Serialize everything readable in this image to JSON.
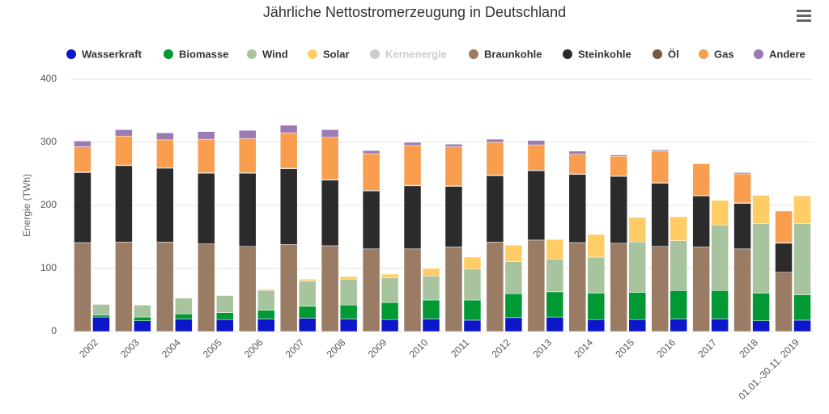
{
  "chart_data": {
    "type": "stacked-grouped-bar",
    "title": "Jährliche Nettostromerzeugung in Deutschland",
    "y_label": "Energie (TWh)",
    "categories": [
      "2002",
      "2003",
      "2004",
      "2005",
      "2006",
      "2007",
      "2008",
      "2009",
      "2010",
      "2011",
      "2012",
      "2013",
      "2014",
      "2015",
      "2016",
      "2017",
      "2018",
      "01.01.-30.11. 2019"
    ],
    "ylim": [
      0,
      400
    ],
    "yticks": [
      0,
      100,
      200,
      300,
      400
    ],
    "grid": true,
    "series": [
      {
        "name": "Wasserkraft",
        "color": "#0b17c9",
        "stack": 2,
        "visible": true,
        "values": [
          23,
          17,
          20,
          19,
          20,
          21,
          20,
          19,
          20,
          18,
          22,
          23,
          19,
          19,
          20,
          20,
          17,
          18
        ]
      },
      {
        "name": "Biomasse",
        "color": "#009933",
        "stack": 2,
        "visible": true,
        "values": [
          3,
          6,
          8,
          11,
          14,
          19,
          22,
          27,
          30,
          32,
          38,
          40,
          42,
          43,
          45,
          45,
          44,
          40
        ]
      },
      {
        "name": "Wind",
        "color": "#a8c49e",
        "stack": 2,
        "visible": true,
        "values": [
          17,
          19,
          25,
          27,
          31,
          40,
          41,
          39,
          38,
          49,
          51,
          52,
          57,
          80,
          79,
          104,
          110,
          113
        ]
      },
      {
        "name": "Solar",
        "color": "#ffcc66",
        "stack": 2,
        "visible": true,
        "values": [
          0,
          0,
          0,
          0,
          2,
          3,
          4,
          6,
          12,
          19,
          26,
          31,
          36,
          39,
          38,
          39,
          45,
          44
        ]
      },
      {
        "name": "Kernenergie",
        "color": "#cccccc",
        "stack": 2,
        "visible": false,
        "values": [
          null,
          null,
          null,
          null,
          null,
          null,
          null,
          null,
          null,
          null,
          null,
          null,
          null,
          null,
          null,
          null,
          null,
          null
        ]
      },
      {
        "name": "Braunkohle",
        "color": "#9a7b63",
        "stack": 1,
        "visible": true,
        "values": [
          141,
          142,
          142,
          139,
          135,
          138,
          136,
          131,
          131,
          134,
          142,
          145,
          141,
          140,
          135,
          134,
          131,
          94
        ]
      },
      {
        "name": "Steinkohle",
        "color": "#2b2b2b",
        "stack": 1,
        "visible": true,
        "values": [
          111,
          121,
          117,
          112,
          116,
          120,
          104,
          92,
          100,
          96,
          105,
          110,
          108,
          106,
          100,
          81,
          72,
          46
        ]
      },
      {
        "name": "Öl",
        "color": "#7a5a3e",
        "stack": 1,
        "visible": true,
        "values": [
          1,
          1,
          1,
          1,
          1,
          1,
          1,
          1,
          1,
          1,
          1,
          1,
          1,
          1,
          1,
          1,
          1,
          1
        ]
      },
      {
        "name": "Gas",
        "color": "#f99d4e",
        "stack": 1,
        "visible": true,
        "values": [
          40,
          46,
          44,
          53,
          54,
          56,
          67,
          58,
          63,
          62,
          52,
          40,
          31,
          31,
          50,
          50,
          46,
          50
        ]
      },
      {
        "name": "Andere",
        "color": "#9b7bb3",
        "stack": 1,
        "visible": true,
        "values": [
          9,
          10,
          11,
          12,
          13,
          12,
          12,
          5,
          5,
          4,
          5,
          7,
          5,
          2,
          2,
          0,
          2,
          0
        ]
      }
    ]
  }
}
